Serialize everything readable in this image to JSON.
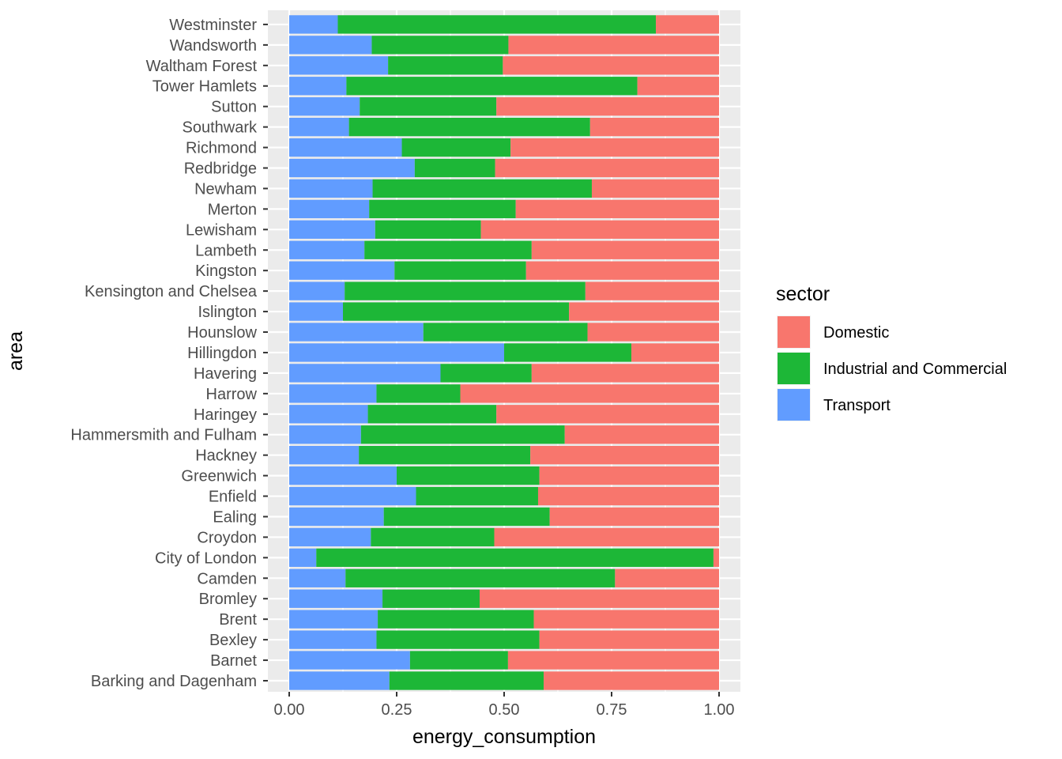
{
  "chart_data": {
    "type": "bar",
    "orientation": "horizontal",
    "stacked": "fill",
    "title": "",
    "xlabel": "energy_consumption",
    "ylabel": "area",
    "xlim": [
      0,
      1
    ],
    "xticks": [
      "0.00",
      "0.25",
      "0.50",
      "0.75",
      "1.00"
    ],
    "xtick_values": [
      0,
      0.25,
      0.5,
      0.75,
      1.0
    ],
    "grid": true,
    "legend": {
      "title": "sector",
      "placement": "right"
    },
    "categories": [
      "Barking and Dagenham",
      "Barnet",
      "Bexley",
      "Brent",
      "Bromley",
      "Camden",
      "City of London",
      "Croydon",
      "Ealing",
      "Enfield",
      "Greenwich",
      "Hackney",
      "Hammersmith and Fulham",
      "Haringey",
      "Harrow",
      "Havering",
      "Hillingdon",
      "Hounslow",
      "Islington",
      "Kensington and Chelsea",
      "Kingston",
      "Lambeth",
      "Lewisham",
      "Merton",
      "Newham",
      "Redbridge",
      "Richmond",
      "Southwark",
      "Sutton",
      "Tower Hamlets",
      "Waltham Forest",
      "Wandsworth",
      "Westminster"
    ],
    "series": [
      {
        "name": "Domestic",
        "color": "#F8766D",
        "values": [
          0.408,
          0.491,
          0.418,
          0.431,
          0.557,
          0.242,
          0.013,
          0.523,
          0.394,
          0.421,
          0.418,
          0.439,
          0.359,
          0.518,
          0.602,
          0.436,
          0.204,
          0.306,
          0.349,
          0.311,
          0.449,
          0.436,
          0.554,
          0.473,
          0.296,
          0.521,
          0.485,
          0.3,
          0.518,
          0.19,
          0.503,
          0.49,
          0.147
        ]
      },
      {
        "name": "Industrial and Commercial",
        "color": "#1DB737",
        "values": [
          0.359,
          0.228,
          0.379,
          0.363,
          0.226,
          0.627,
          0.924,
          0.287,
          0.386,
          0.284,
          0.332,
          0.399,
          0.474,
          0.299,
          0.195,
          0.212,
          0.296,
          0.382,
          0.526,
          0.56,
          0.306,
          0.389,
          0.246,
          0.341,
          0.51,
          0.187,
          0.253,
          0.561,
          0.318,
          0.677,
          0.267,
          0.318,
          0.74
        ]
      },
      {
        "name": "Transport",
        "color": "#619CFF",
        "values": [
          0.233,
          0.281,
          0.203,
          0.206,
          0.217,
          0.131,
          0.063,
          0.19,
          0.22,
          0.295,
          0.25,
          0.162,
          0.167,
          0.183,
          0.203,
          0.352,
          0.5,
          0.312,
          0.125,
          0.129,
          0.245,
          0.175,
          0.2,
          0.186,
          0.194,
          0.292,
          0.262,
          0.139,
          0.164,
          0.133,
          0.23,
          0.192,
          0.113
        ]
      }
    ]
  }
}
